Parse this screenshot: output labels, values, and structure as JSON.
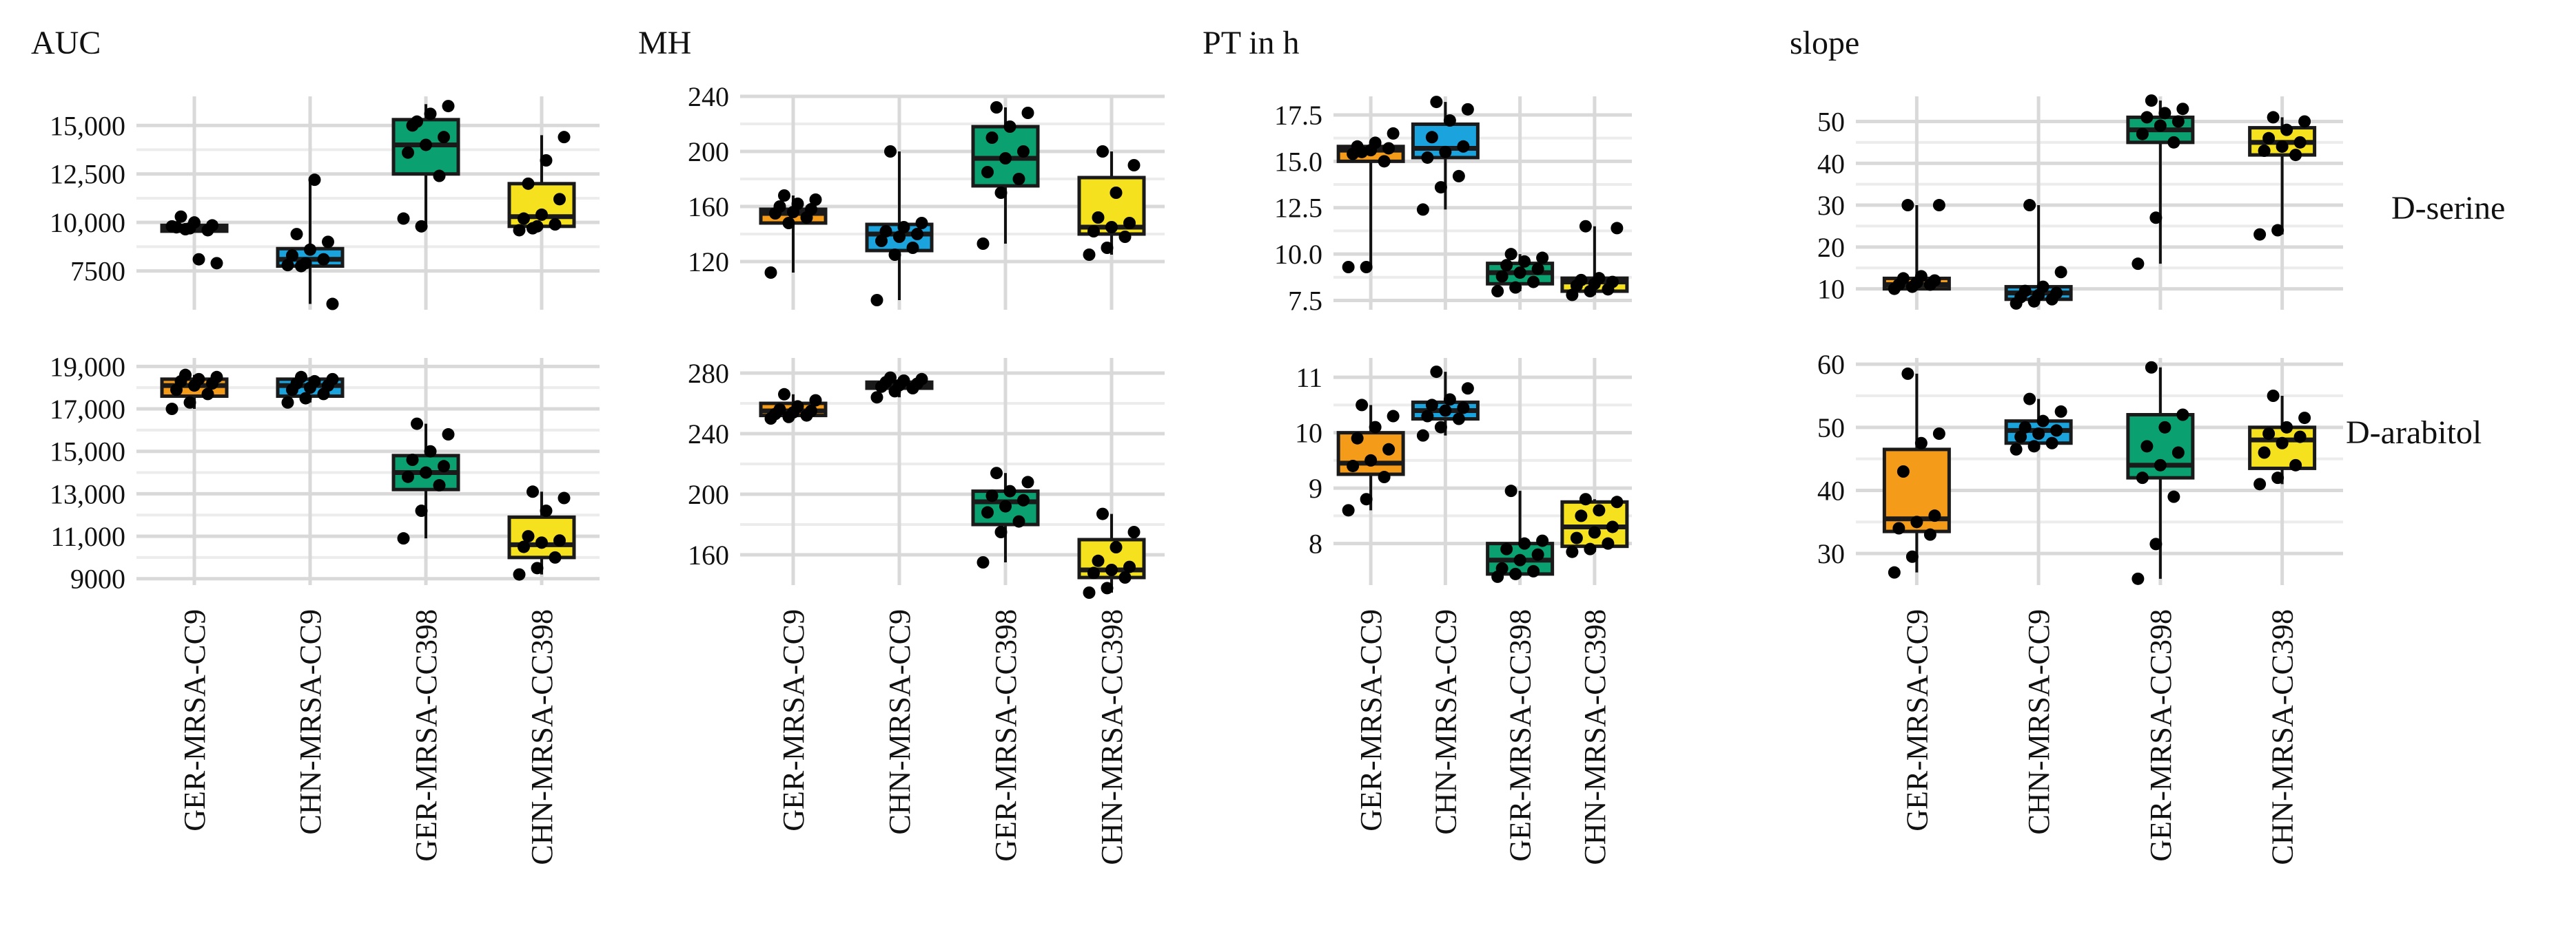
{
  "figure": {
    "groups": [
      "GER-MRSA-CC9",
      "CHN-MRSA-CC9",
      "GER-MRSA-CC398",
      "CHN-MRSA-CC398"
    ],
    "group_colors": [
      "#F59B1A",
      "#1BA3DE",
      "#0AA070",
      "#F5E11E"
    ],
    "metrics": [
      "AUC",
      "MH",
      "PT in h",
      "slope"
    ],
    "conditions": [
      "D-serine",
      "D-arabitol"
    ]
  },
  "chart_data": [
    {
      "type": "box",
      "id": "auc-serine",
      "title": "AUC",
      "condition": "D-serine",
      "metric": "AUC",
      "ylim": [
        5500,
        16500
      ],
      "ticks": [
        {
          "v": 7500,
          "label": "7500"
        },
        {
          "v": 10000,
          "label": "10,000"
        },
        {
          "v": 12500,
          "label": "12,500"
        },
        {
          "v": 15000,
          "label": "15,000"
        }
      ],
      "boxes": [
        {
          "q1": 9550,
          "median": 9750,
          "q3": 9850,
          "wmin": 9550,
          "wmax": 9900
        },
        {
          "q1": 7750,
          "median": 8100,
          "q3": 8650,
          "wmin": 5800,
          "wmax": 12200
        },
        {
          "q1": 12500,
          "median": 14000,
          "q3": 15300,
          "wmin": 9800,
          "wmax": 16100
        },
        {
          "q1": 9800,
          "median": 10300,
          "q3": 12000,
          "wmin": 9800,
          "wmax": 14500
        }
      ],
      "points": [
        [
          9800,
          9700,
          9600,
          9750,
          10000,
          9850,
          10300,
          8100,
          7900,
          9650
        ],
        [
          7800,
          7900,
          8100,
          8300,
          8600,
          9000,
          9400,
          12200,
          5800,
          7750
        ],
        [
          10200,
          9800,
          12400,
          13600,
          14000,
          14400,
          15000,
          15600,
          16000,
          15200
        ],
        [
          9600,
          9800,
          9900,
          10200,
          10400,
          11200,
          12000,
          13200,
          14400,
          9700
        ]
      ]
    },
    {
      "type": "box",
      "id": "mh-serine",
      "title": "MH",
      "condition": "D-serine",
      "metric": "MH",
      "ylim": [
        85,
        240
      ],
      "ticks": [
        {
          "v": 120,
          "label": "120"
        },
        {
          "v": 160,
          "label": "160"
        },
        {
          "v": 200,
          "label": "200"
        },
        {
          "v": 240,
          "label": "240"
        }
      ],
      "boxes": [
        {
          "q1": 148,
          "median": 155,
          "q3": 158,
          "wmin": 112,
          "wmax": 168
        },
        {
          "q1": 128,
          "median": 140,
          "q3": 147,
          "wmin": 92,
          "wmax": 200
        },
        {
          "q1": 175,
          "median": 195,
          "q3": 218,
          "wmin": 133,
          "wmax": 232
        },
        {
          "q1": 140,
          "median": 145,
          "q3": 181,
          "wmin": 125,
          "wmax": 200
        }
      ],
      "points": [
        [
          112,
          148,
          152,
          155,
          156,
          158,
          160,
          162,
          165,
          168
        ],
        [
          92,
          125,
          130,
          135,
          138,
          140,
          142,
          145,
          148,
          200
        ],
        [
          133,
          170,
          180,
          185,
          195,
          200,
          210,
          218,
          228,
          232
        ],
        [
          125,
          130,
          138,
          142,
          145,
          148,
          152,
          170,
          190,
          200
        ]
      ]
    },
    {
      "type": "box",
      "id": "pt-serine",
      "title": "PT in h",
      "condition": "D-serine",
      "metric": "PT in h",
      "ylim": [
        7.0,
        18.5
      ],
      "ticks": [
        {
          "v": 7.5,
          "label": "7.5"
        },
        {
          "v": 10.0,
          "label": "10.0"
        },
        {
          "v": 12.5,
          "label": "12.5"
        },
        {
          "v": 15.0,
          "label": "15.0"
        },
        {
          "v": 17.5,
          "label": "17.5"
        }
      ],
      "boxes": [
        {
          "q1": 15.0,
          "median": 15.6,
          "q3": 15.8,
          "wmin": 9.3,
          "wmax": 16.0
        },
        {
          "q1": 15.2,
          "median": 15.7,
          "q3": 17.0,
          "wmin": 12.4,
          "wmax": 18.2
        },
        {
          "q1": 8.4,
          "median": 9.0,
          "q3": 9.5,
          "wmin": 8.0,
          "wmax": 10.0
        },
        {
          "q1": 8.0,
          "median": 8.5,
          "q3": 8.7,
          "wmin": 7.8,
          "wmax": 11.5
        }
      ],
      "points": [
        [
          9.3,
          9.3,
          15.0,
          15.4,
          15.6,
          15.7,
          15.8,
          16.0,
          16.5,
          15.5
        ],
        [
          12.4,
          13.6,
          14.2,
          15.2,
          15.5,
          15.8,
          16.3,
          17.2,
          17.8,
          18.2
        ],
        [
          8.0,
          8.2,
          8.5,
          8.8,
          9.0,
          9.2,
          9.4,
          9.6,
          9.8,
          10.0
        ],
        [
          7.8,
          8.0,
          8.1,
          8.3,
          8.4,
          8.5,
          8.6,
          8.7,
          11.4,
          11.5
        ]
      ]
    },
    {
      "type": "box",
      "id": "slope-serine",
      "title": "slope",
      "condition": "D-serine",
      "metric": "slope",
      "ylim": [
        5,
        56
      ],
      "ticks": [
        {
          "v": 10,
          "label": "10"
        },
        {
          "v": 20,
          "label": "20"
        },
        {
          "v": 30,
          "label": "30"
        },
        {
          "v": 40,
          "label": "40"
        },
        {
          "v": 50,
          "label": "50"
        }
      ],
      "boxes": [
        {
          "q1": 10,
          "median": 11,
          "q3": 12.5,
          "wmin": 10,
          "wmax": 30
        },
        {
          "q1": 7.5,
          "median": 9,
          "q3": 10.5,
          "wmin": 6.5,
          "wmax": 30
        },
        {
          "q1": 45,
          "median": 48,
          "q3": 51,
          "wmin": 16,
          "wmax": 55
        },
        {
          "q1": 42,
          "median": 45,
          "q3": 48.5,
          "wmin": 23,
          "wmax": 51
        }
      ],
      "points": [
        [
          10,
          10.5,
          11,
          11,
          11.5,
          12,
          12.5,
          13,
          30,
          30
        ],
        [
          6.5,
          7,
          7.5,
          8,
          8.5,
          9,
          9.5,
          10.5,
          14,
          30
        ],
        [
          16,
          27,
          45,
          47,
          49,
          50,
          51,
          52,
          53,
          55
        ],
        [
          23,
          24,
          42,
          43,
          44,
          45,
          46,
          48,
          50,
          51
        ]
      ]
    },
    {
      "type": "box",
      "id": "auc-arabitol",
      "title": "",
      "condition": "D-arabitol",
      "metric": "AUC",
      "ylim": [
        8700,
        19400
      ],
      "ticks": [
        {
          "v": 9000,
          "label": "9000"
        },
        {
          "v": 11000,
          "label": "11,000"
        },
        {
          "v": 13000,
          "label": "13,000"
        },
        {
          "v": 15000,
          "label": "15,000"
        },
        {
          "v": 17000,
          "label": "17,000"
        },
        {
          "v": 19000,
          "label": "19,000"
        }
      ],
      "boxes": [
        {
          "q1": 17600,
          "median": 18100,
          "q3": 18400,
          "wmin": 17000,
          "wmax": 18600
        },
        {
          "q1": 17600,
          "median": 18100,
          "q3": 18400,
          "wmin": 17300,
          "wmax": 18500
        },
        {
          "q1": 13200,
          "median": 14000,
          "q3": 14800,
          "wmin": 10900,
          "wmax": 16300
        },
        {
          "q1": 10000,
          "median": 10600,
          "q3": 11900,
          "wmin": 9200,
          "wmax": 13100
        }
      ],
      "points": [
        [
          17000,
          17300,
          17700,
          17900,
          18100,
          18200,
          18300,
          18400,
          18500,
          18600
        ],
        [
          17300,
          17500,
          17700,
          17900,
          18000,
          18100,
          18200,
          18300,
          18400,
          18500
        ],
        [
          10900,
          12200,
          13400,
          13800,
          14000,
          14300,
          14600,
          15000,
          15800,
          16300
        ],
        [
          9200,
          9500,
          10000,
          10500,
          10700,
          10800,
          11000,
          12200,
          12800,
          13100
        ]
      ]
    },
    {
      "type": "box",
      "id": "mh-arabitol",
      "title": "",
      "condition": "D-arabitol",
      "metric": "MH",
      "ylim": [
        140,
        290
      ],
      "ticks": [
        {
          "v": 160,
          "label": "160"
        },
        {
          "v": 200,
          "label": "200"
        },
        {
          "v": 240,
          "label": "240"
        },
        {
          "v": 280,
          "label": "280"
        }
      ],
      "boxes": [
        {
          "q1": 252,
          "median": 255,
          "q3": 260,
          "wmin": 250,
          "wmax": 266
        },
        {
          "q1": 270,
          "median": 272,
          "q3": 274,
          "wmin": 264,
          "wmax": 277
        },
        {
          "q1": 180,
          "median": 195,
          "q3": 202,
          "wmin": 155,
          "wmax": 214
        },
        {
          "q1": 145,
          "median": 150,
          "q3": 170,
          "wmin": 135,
          "wmax": 187
        }
      ],
      "points": [
        [
          250,
          251,
          252,
          253,
          254,
          255,
          256,
          258,
          262,
          266
        ],
        [
          264,
          268,
          270,
          271,
          272,
          273,
          274,
          275,
          276,
          277
        ],
        [
          155,
          175,
          182,
          188,
          192,
          196,
          199,
          202,
          208,
          214
        ],
        [
          135,
          138,
          145,
          148,
          150,
          152,
          156,
          165,
          175,
          187
        ]
      ]
    },
    {
      "type": "box",
      "id": "pt-arabitol",
      "title": "",
      "condition": "D-arabitol",
      "metric": "PT in h",
      "ylim": [
        7.25,
        11.35
      ],
      "ticks": [
        {
          "v": 8,
          "label": "8"
        },
        {
          "v": 9,
          "label": "9"
        },
        {
          "v": 10,
          "label": "10"
        },
        {
          "v": 11,
          "label": "11"
        }
      ],
      "boxes": [
        {
          "q1": 9.25,
          "median": 9.45,
          "q3": 10.0,
          "wmin": 8.6,
          "wmax": 10.5
        },
        {
          "q1": 10.25,
          "median": 10.4,
          "q3": 10.55,
          "wmin": 9.95,
          "wmax": 11.1
        },
        {
          "q1": 7.45,
          "median": 7.7,
          "q3": 8.0,
          "wmin": 7.4,
          "wmax": 8.95
        },
        {
          "q1": 7.95,
          "median": 8.3,
          "q3": 8.75,
          "wmin": 7.85,
          "wmax": 8.8
        }
      ],
      "points": [
        [
          8.6,
          8.8,
          9.2,
          9.4,
          9.5,
          9.7,
          9.9,
          10.1,
          10.3,
          10.5
        ],
        [
          9.95,
          10.1,
          10.25,
          10.3,
          10.4,
          10.45,
          10.5,
          10.6,
          10.8,
          11.1
        ],
        [
          7.4,
          7.45,
          7.5,
          7.55,
          7.7,
          7.8,
          7.9,
          8.0,
          8.05,
          8.95
        ],
        [
          7.85,
          7.9,
          8.0,
          8.1,
          8.2,
          8.3,
          8.5,
          8.6,
          8.75,
          8.8
        ]
      ]
    },
    {
      "type": "box",
      "id": "slope-arabitol",
      "title": "",
      "condition": "D-arabitol",
      "metric": "slope",
      "ylim": [
        25,
        61
      ],
      "ticks": [
        {
          "v": 30,
          "label": "30"
        },
        {
          "v": 40,
          "label": "40"
        },
        {
          "v": 50,
          "label": "50"
        },
        {
          "v": 60,
          "label": "60"
        }
      ],
      "boxes": [
        {
          "q1": 33.5,
          "median": 35.5,
          "q3": 46.5,
          "wmin": 27,
          "wmax": 58.5
        },
        {
          "q1": 47.5,
          "median": 49.5,
          "q3": 51,
          "wmin": 46.5,
          "wmax": 54.5
        },
        {
          "q1": 42,
          "median": 44,
          "q3": 52,
          "wmin": 26,
          "wmax": 59.5
        },
        {
          "q1": 43.5,
          "median": 48,
          "q3": 50,
          "wmin": 41,
          "wmax": 55
        }
      ],
      "points": [
        [
          27,
          29.5,
          33,
          34,
          35,
          36,
          43,
          47.5,
          49,
          58.5
        ],
        [
          46.5,
          47,
          47.5,
          48.5,
          49,
          49.5,
          50,
          51,
          52.5,
          54.5
        ],
        [
          26,
          31.5,
          39,
          42,
          44,
          46,
          47,
          50,
          52,
          59.5
        ],
        [
          41,
          42,
          44,
          46,
          47.5,
          48.5,
          49,
          50,
          51.5,
          55
        ]
      ]
    }
  ]
}
